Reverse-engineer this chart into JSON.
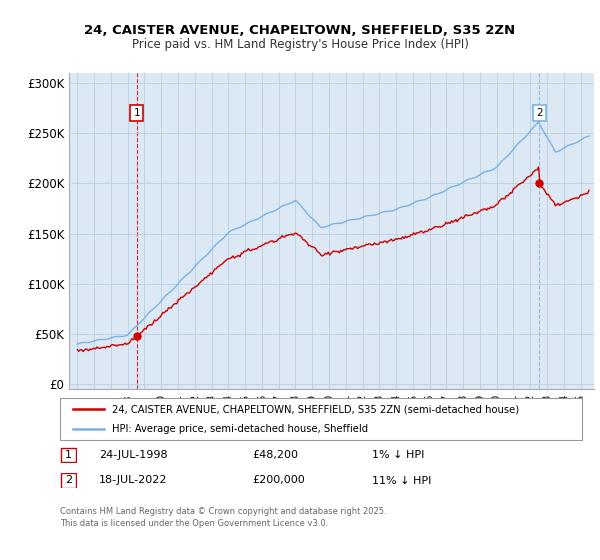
{
  "title_line1": "24, CAISTER AVENUE, CHAPELTOWN, SHEFFIELD, S35 2ZN",
  "title_line2": "Price paid vs. HM Land Registry's House Price Index (HPI)",
  "ylabel_ticks": [
    "£0",
    "£50K",
    "£100K",
    "£150K",
    "£200K",
    "£250K",
    "£300K"
  ],
  "ytick_values": [
    0,
    50000,
    100000,
    150000,
    200000,
    250000,
    300000
  ],
  "ylim": [
    -5000,
    310000
  ],
  "xlim_start": 1994.5,
  "xlim_end": 2025.8,
  "hpi_color": "#7ab3e0",
  "price_color": "#cc0000",
  "vline1_color": "#cc0000",
  "vline2_color": "#7ab3e0",
  "bg_fill_color": "#dde8f5",
  "marker1_x": 1998.55,
  "marker1_y": 48200,
  "marker2_x": 2022.54,
  "marker2_y": 200000,
  "legend_line1": "24, CAISTER AVENUE, CHAPELTOWN, SHEFFIELD, S35 2ZN (semi-detached house)",
  "legend_line2": "HPI: Average price, semi-detached house, Sheffield",
  "table_row1_num": "1",
  "table_row1_date": "24-JUL-1998",
  "table_row1_price": "£48,200",
  "table_row1_hpi": "1% ↓ HPI",
  "table_row2_num": "2",
  "table_row2_date": "18-JUL-2022",
  "table_row2_price": "£200,000",
  "table_row2_hpi": "11% ↓ HPI",
  "footer": "Contains HM Land Registry data © Crown copyright and database right 2025.\nThis data is licensed under the Open Government Licence v3.0.",
  "background_color": "#ffffff",
  "grid_color": "#b8cfe0"
}
